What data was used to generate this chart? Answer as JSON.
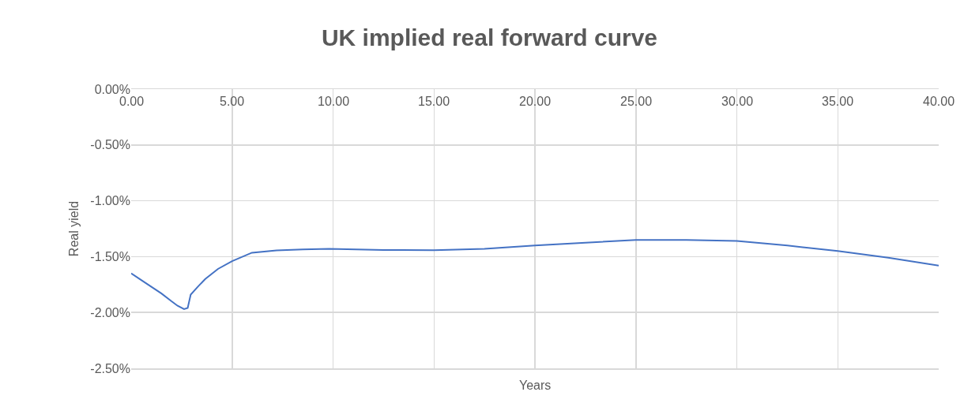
{
  "chart_data": {
    "type": "line",
    "title": "UK implied real forward curve",
    "xlabel": "Years",
    "ylabel": "Real yield",
    "x": [
      0,
      0.5,
      1,
      1.5,
      2,
      2.3,
      2.62,
      2.8,
      2.95,
      3.3,
      3.67,
      4.3,
      5,
      5.98,
      7.2,
      8.5,
      9.8,
      12.5,
      15,
      17.5,
      20,
      22.5,
      25,
      27.5,
      30,
      32.5,
      35,
      37.5,
      40
    ],
    "series": [
      {
        "color": "#4472c4",
        "values": [
          -1.65,
          -1.71,
          -1.77,
          -1.83,
          -1.9,
          -1.94,
          -1.97,
          -1.96,
          -1.84,
          -1.77,
          -1.7,
          -1.61,
          -1.54,
          -1.465,
          -1.445,
          -1.435,
          -1.43,
          -1.44,
          -1.443,
          -1.43,
          -1.4,
          -1.375,
          -1.35,
          -1.35,
          -1.36,
          -1.4,
          -1.45,
          -1.51,
          -1.58
        ]
      }
    ],
    "xlim": [
      0,
      40
    ],
    "xticks": [
      {
        "value": 0,
        "label": "0.00"
      },
      {
        "value": 5,
        "label": "5.00"
      },
      {
        "value": 10,
        "label": "10.00"
      },
      {
        "value": 15,
        "label": "15.00"
      },
      {
        "value": 20,
        "label": "20.00"
      },
      {
        "value": 25,
        "label": "25.00"
      },
      {
        "value": 30,
        "label": "30.00"
      },
      {
        "value": 35,
        "label": "35.00"
      },
      {
        "value": 40,
        "label": "40.00"
      }
    ],
    "ylim": [
      -2.5,
      0
    ],
    "yticks": [
      {
        "value": 0,
        "label": "0.00%"
      },
      {
        "value": -0.5,
        "label": "-0.50%"
      },
      {
        "value": -1,
        "label": "-1.00%"
      },
      {
        "value": -1.5,
        "label": "-1.50%"
      },
      {
        "value": -2,
        "label": "-2.00%"
      },
      {
        "value": -2.5,
        "label": "-2.50%"
      }
    ],
    "grid": true,
    "marker": "none",
    "line_style": "solid"
  }
}
